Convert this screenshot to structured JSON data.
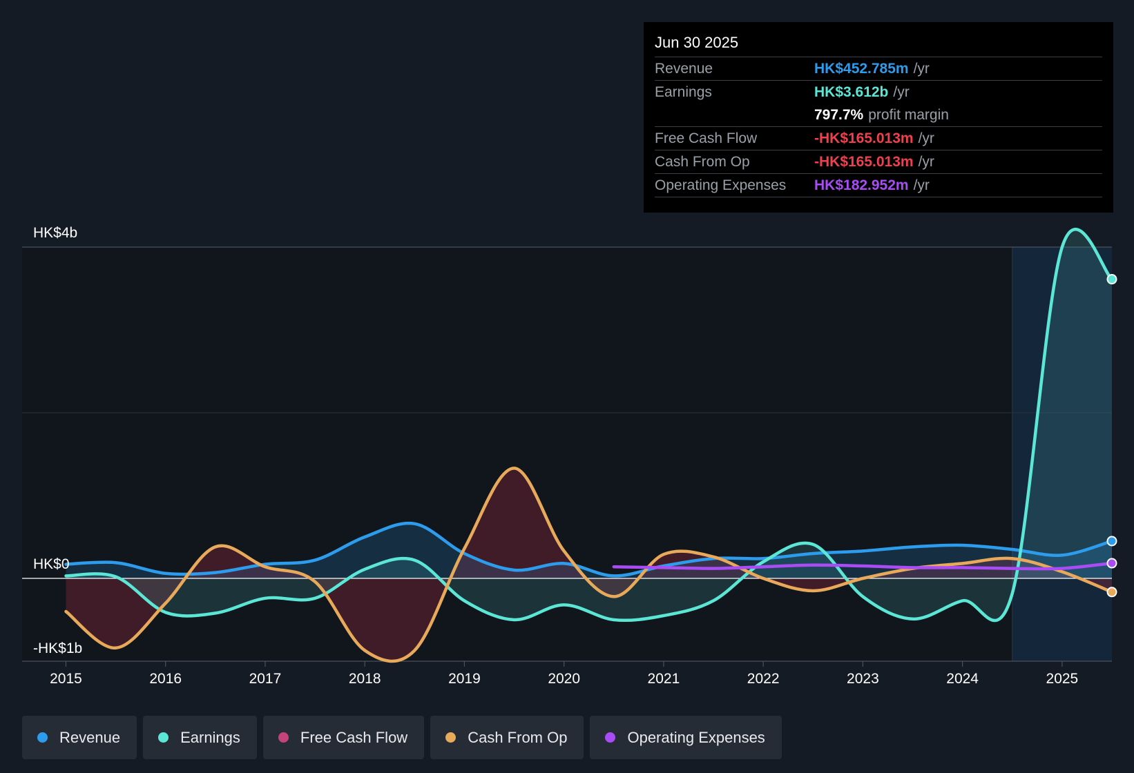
{
  "tooltip": {
    "date": "Jun 30 2025",
    "rows": [
      {
        "label": "Revenue",
        "value": "HK$452.785m",
        "unit": "/yr",
        "color": "#2d9cec"
      },
      {
        "label": "Earnings",
        "value": "HK$3.612b",
        "unit": "/yr",
        "color": "#5ce6d6"
      },
      {
        "label": "",
        "value": "797.7%",
        "unit": "profit margin",
        "color": "#ffffff"
      },
      {
        "label": "Free Cash Flow",
        "value": "-HK$165.013m",
        "unit": "/yr",
        "color": "#f0404e"
      },
      {
        "label": "Cash From Op",
        "value": "-HK$165.013m",
        "unit": "/yr",
        "color": "#f0404e"
      },
      {
        "label": "Operating Expenses",
        "value": "HK$182.952m",
        "unit": "/yr",
        "color": "#a94cf5"
      }
    ]
  },
  "legend": [
    {
      "label": "Revenue",
      "color": "#2d9cec"
    },
    {
      "label": "Earnings",
      "color": "#5ce6d6"
    },
    {
      "label": "Free Cash Flow",
      "color": "#c4437a"
    },
    {
      "label": "Cash From Op",
      "color": "#e8aa5a"
    },
    {
      "label": "Operating Expenses",
      "color": "#a94cf5"
    }
  ],
  "chart_data": {
    "type": "line",
    "title": "",
    "xlabel": "",
    "ylabel": "",
    "y_tick_labels": [
      "HK$4b",
      "HK$0",
      "-HK$1b"
    ],
    "y_ticks": [
      4,
      0,
      -1
    ],
    "ylim": [
      -1,
      4
    ],
    "xlim": [
      2014.56,
      2025.5
    ],
    "x_tick_labels": [
      "2015",
      "2016",
      "2017",
      "2018",
      "2019",
      "2020",
      "2021",
      "2022",
      "2023",
      "2024",
      "2025"
    ],
    "x_ticks": [
      2015,
      2016,
      2017,
      2018,
      2019,
      2020,
      2021,
      2022,
      2023,
      2024,
      2025
    ],
    "forecast_start": 2024.5,
    "series": [
      {
        "name": "Revenue",
        "color": "#2d9cec",
        "x": [
          2015,
          2015.5,
          2016,
          2016.5,
          2017,
          2017.5,
          2018,
          2018.5,
          2019,
          2019.5,
          2020,
          2020.5,
          2021,
          2021.5,
          2022,
          2022.5,
          2023,
          2023.5,
          2024,
          2024.5,
          2025,
          2025.5
        ],
        "y": [
          0.17,
          0.19,
          0.06,
          0.07,
          0.17,
          0.22,
          0.5,
          0.66,
          0.3,
          0.1,
          0.18,
          0.03,
          0.15,
          0.24,
          0.24,
          0.3,
          0.33,
          0.38,
          0.4,
          0.35,
          0.28,
          0.45
        ]
      },
      {
        "name": "Earnings",
        "color": "#5ce6d6",
        "x": [
          2015,
          2015.5,
          2016,
          2016.5,
          2017,
          2017.5,
          2018,
          2018.5,
          2019,
          2019.5,
          2020,
          2020.5,
          2021,
          2021.5,
          2022,
          2022.5,
          2023,
          2023.5,
          2024,
          2024.5,
          2025,
          2025.5
        ],
        "y": [
          0.03,
          0.02,
          -0.41,
          -0.42,
          -0.24,
          -0.24,
          0.11,
          0.22,
          -0.27,
          -0.5,
          -0.32,
          -0.5,
          -0.45,
          -0.27,
          0.2,
          0.41,
          -0.22,
          -0.49,
          -0.27,
          -0.18,
          4.0,
          3.612
        ]
      },
      {
        "name": "Cash From Op",
        "color": "#e8aa5a",
        "x": [
          2015,
          2015.5,
          2016,
          2016.5,
          2017,
          2017.5,
          2018,
          2018.5,
          2019,
          2019.5,
          2020,
          2020.5,
          2021,
          2021.5,
          2022,
          2022.5,
          2023,
          2023.5,
          2024,
          2024.5,
          2025,
          2025.5
        ],
        "y": [
          -0.4,
          -0.84,
          -0.3,
          0.38,
          0.14,
          -0.04,
          -0.87,
          -0.87,
          0.36,
          1.33,
          0.33,
          -0.22,
          0.29,
          0.26,
          0.0,
          -0.15,
          0.0,
          0.12,
          0.18,
          0.24,
          0.08,
          -0.165
        ]
      },
      {
        "name": "Operating Expenses",
        "color": "#a94cf5",
        "x": [
          2020.5,
          2021,
          2021.5,
          2022,
          2022.5,
          2023,
          2023.5,
          2024,
          2024.5,
          2025,
          2025.5
        ],
        "y": [
          0.14,
          0.13,
          0.12,
          0.14,
          0.16,
          0.15,
          0.13,
          0.13,
          0.12,
          0.12,
          0.183
        ]
      }
    ]
  }
}
